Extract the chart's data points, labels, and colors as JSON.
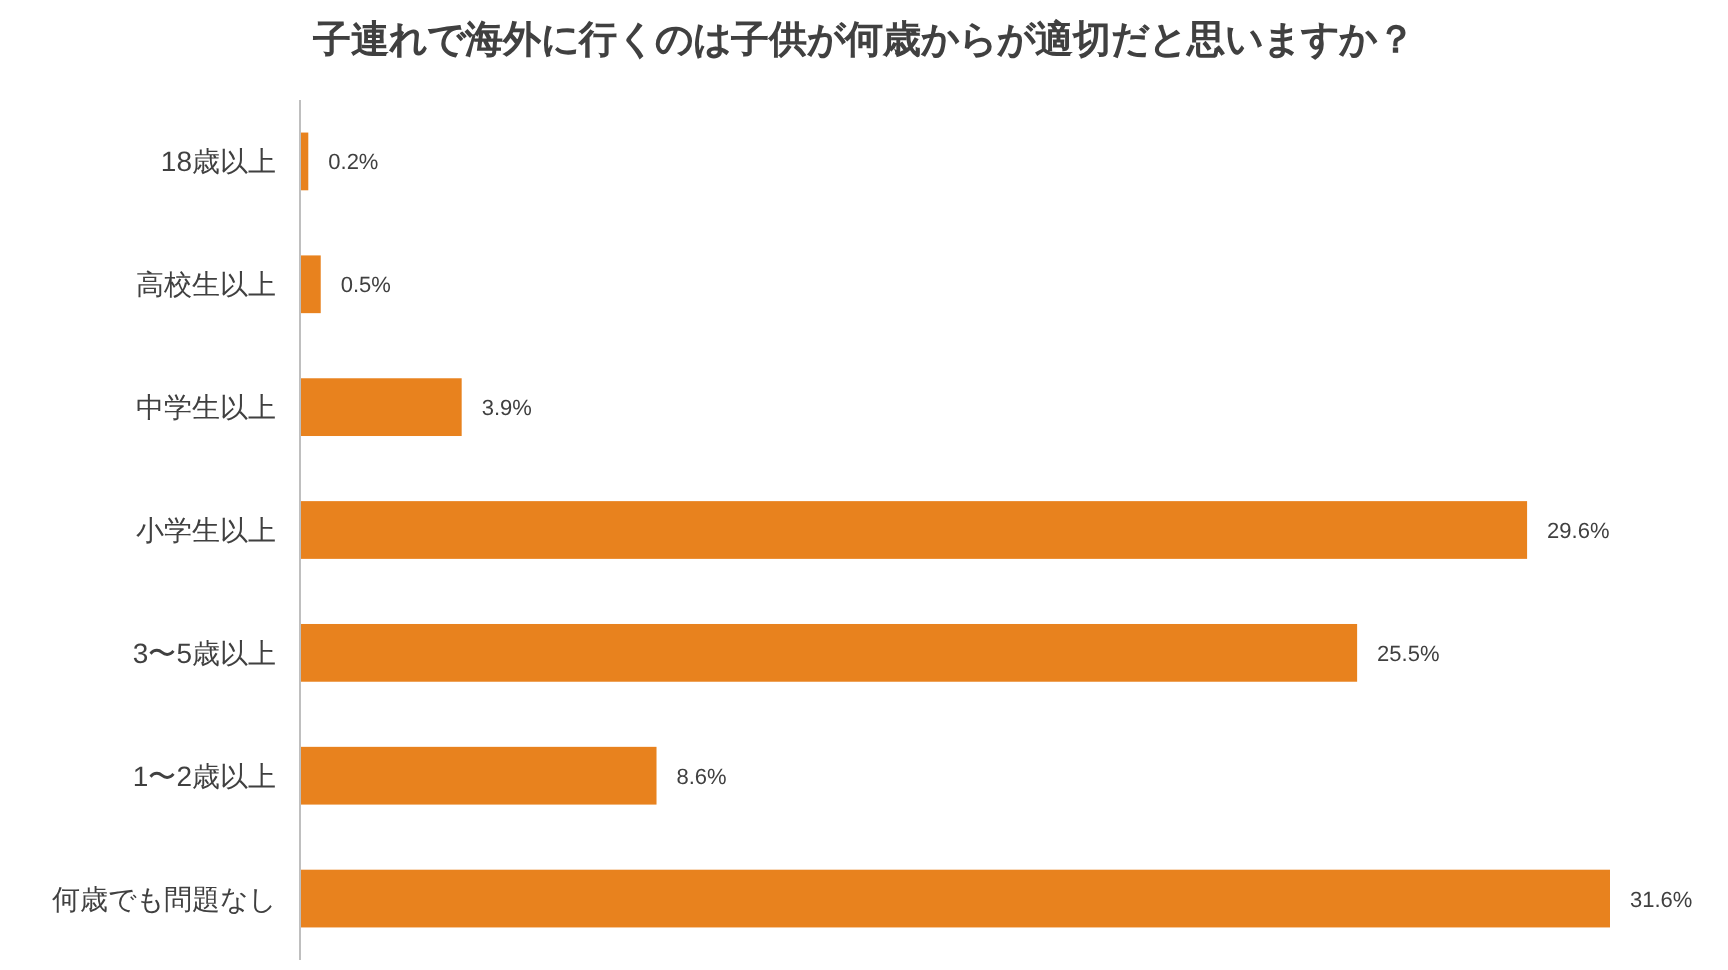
{
  "chart_data": {
    "type": "bar",
    "orientation": "horizontal",
    "title": "子連れで海外に行くのは子供が何歳からが適切だと思いますか？",
    "categories": [
      "18歳以上",
      "高校生以上",
      "中学生以上",
      "小学生以上",
      "3〜5歳以上",
      "1〜2歳以上",
      "何歳でも問題なし"
    ],
    "values": [
      0.2,
      0.5,
      3.9,
      29.6,
      25.5,
      8.6,
      31.6
    ],
    "value_labels": [
      "0.2%",
      "0.5%",
      "3.9%",
      "29.6%",
      "25.5%",
      "8.6%",
      "31.6%"
    ],
    "color": "#e8821e"
  }
}
